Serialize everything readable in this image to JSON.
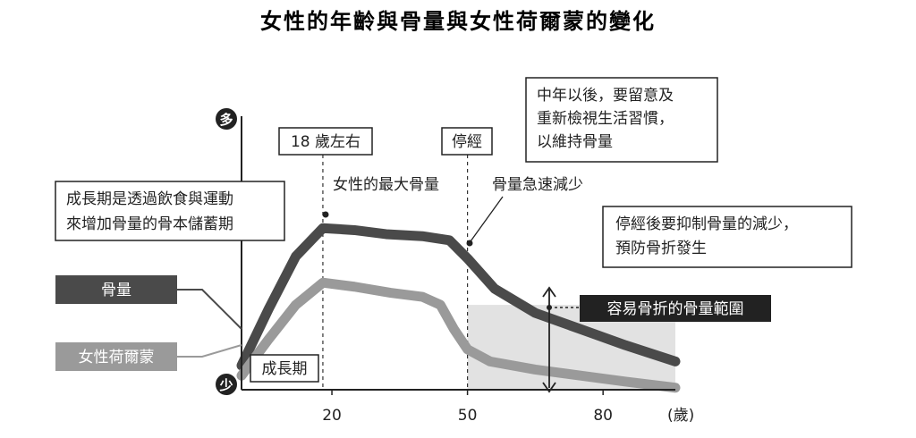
{
  "chart_data": {
    "type": "line",
    "title": "女性的年齡與骨量與女性荷爾蒙的變化",
    "y_axis": {
      "top_label": "多",
      "bottom_label": "少"
    },
    "x_axis": {
      "ticks": [
        "20",
        "50",
        "80"
      ],
      "unit": "(歲)"
    },
    "xlim": [
      0,
      96
    ],
    "ylim": [
      0,
      100
    ],
    "series": [
      {
        "name": "骨量",
        "color": "#4a4a4a",
        "x": [
          0,
          6,
          12,
          18,
          25,
          32,
          40,
          46,
          50,
          56,
          65,
          75,
          85,
          96
        ],
        "y": [
          12,
          40,
          66,
          80,
          79,
          77,
          76,
          74,
          65,
          50,
          38,
          30,
          22,
          14
        ]
      },
      {
        "name": "女性荷爾蒙",
        "color": "#9a9a9a",
        "x": [
          0,
          6,
          12,
          18,
          25,
          33,
          40,
          44,
          47,
          50,
          55,
          65,
          75,
          85,
          96
        ],
        "y": [
          7,
          25,
          42,
          53,
          51,
          48,
          46,
          42,
          30,
          20,
          14,
          10,
          7,
          4,
          1
        ]
      }
    ],
    "vertical_markers": [
      {
        "x": 18,
        "label": "18 歲左右"
      },
      {
        "x": 50,
        "label": "停經"
      }
    ],
    "fracture_range": {
      "from_x": 50,
      "to_x": 96,
      "y_min": 0,
      "y_max": 42,
      "label": "容易骨折的骨量範圍"
    },
    "annotations": {
      "growth_period": "成長期",
      "peak": "女性的最大骨量",
      "rapid_decrease": "骨量急速減少",
      "growth_note": [
        "成長期是透過飲食與運動",
        "來增加骨量的骨本儲蓄期"
      ],
      "middle_age_note": [
        "中年以後，要留意及",
        "重新檢視生活習慣，",
        "以維持骨量"
      ],
      "menopause_note": [
        "停經後要抑制骨量的減少，",
        "預防骨折發生"
      ]
    }
  }
}
